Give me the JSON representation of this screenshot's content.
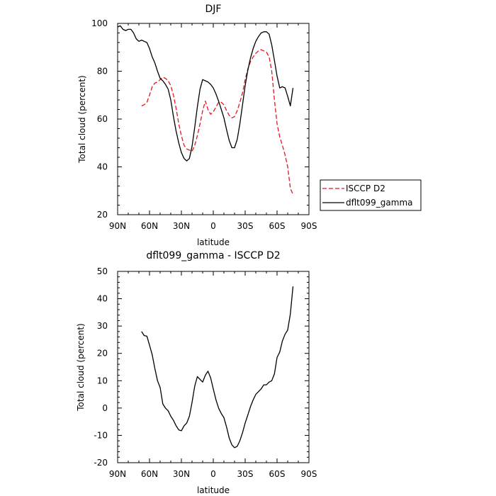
{
  "chart_data": [
    {
      "type": "line",
      "title": "DJF",
      "xlabel": "latitude",
      "ylabel": "Total cloud (percent)",
      "xlim": [
        -90,
        90
      ],
      "ylim": [
        20,
        100
      ],
      "x_ticks": [
        {
          "value": -90,
          "label": "90N"
        },
        {
          "value": -60,
          "label": "60N"
        },
        {
          "value": -30,
          "label": "30N"
        },
        {
          "value": 0,
          "label": "0"
        },
        {
          "value": 30,
          "label": "30S"
        },
        {
          "value": 60,
          "label": "60S"
        },
        {
          "value": 90,
          "label": "90S"
        }
      ],
      "y_ticks": [
        {
          "value": 20,
          "label": "20"
        },
        {
          "value": 40,
          "label": "40"
        },
        {
          "value": 60,
          "label": "60"
        },
        {
          "value": 80,
          "label": "80"
        },
        {
          "value": 100,
          "label": "100"
        }
      ],
      "legend": [
        {
          "label": "ISCCP D2",
          "color": "#e8141e",
          "dash": "6,3"
        },
        {
          "label": "dflt099_gamma",
          "color": "#000000",
          "dash": ""
        }
      ],
      "legend_position": "right",
      "series": [
        {
          "name": "ISCCP D2",
          "color": "#e8141e",
          "dash": "6,3",
          "points": [
            [
              -67.5,
              65.5
            ],
            [
              -65,
              66
            ],
            [
              -62.5,
              67
            ],
            [
              -60,
              70
            ],
            [
              -57.5,
              73.5
            ],
            [
              -55,
              75
            ],
            [
              -52.5,
              75.5
            ],
            [
              -50,
              76.5
            ],
            [
              -47.5,
              77.5
            ],
            [
              -45,
              77
            ],
            [
              -42.5,
              76
            ],
            [
              -40,
              74
            ],
            [
              -37.5,
              70
            ],
            [
              -35,
              64.5
            ],
            [
              -32.5,
              58
            ],
            [
              -30,
              53
            ],
            [
              -27.5,
              49
            ],
            [
              -25,
              47.5
            ],
            [
              -22.5,
              47
            ],
            [
              -20,
              46.5
            ],
            [
              -17.5,
              49
            ],
            [
              -15,
              53
            ],
            [
              -12.5,
              58
            ],
            [
              -10,
              63.5
            ],
            [
              -7.5,
              67.5
            ],
            [
              -5,
              64
            ],
            [
              -2.5,
              62
            ],
            [
              0,
              63
            ],
            [
              2.5,
              65
            ],
            [
              5,
              67
            ],
            [
              7.5,
              67
            ],
            [
              10,
              66
            ],
            [
              12.5,
              63.5
            ],
            [
              15,
              61.5
            ],
            [
              17.5,
              60.5
            ],
            [
              20,
              61
            ],
            [
              22.5,
              63.5
            ],
            [
              25,
              67
            ],
            [
              27.5,
              71
            ],
            [
              30,
              76.5
            ],
            [
              32.5,
              81
            ],
            [
              35,
              84
            ],
            [
              37.5,
              86
            ],
            [
              40,
              87.5
            ],
            [
              42.5,
              88.5
            ],
            [
              45,
              89
            ],
            [
              47.5,
              88.5
            ],
            [
              50,
              88
            ],
            [
              52.5,
              86
            ],
            [
              55,
              80
            ],
            [
              57.5,
              68
            ],
            [
              60,
              58
            ],
            [
              62.5,
              52.5
            ],
            [
              65,
              49
            ],
            [
              67.5,
              45
            ],
            [
              70,
              40
            ],
            [
              72.5,
              31
            ],
            [
              75,
              28.5
            ]
          ]
        },
        {
          "name": "dflt099_gamma",
          "color": "#000000",
          "dash": "",
          "points": [
            [
              -90,
              98.5
            ],
            [
              -87.5,
              99
            ],
            [
              -85,
              97.5
            ],
            [
              -82.5,
              97
            ],
            [
              -80,
              97.5
            ],
            [
              -77.5,
              97.5
            ],
            [
              -75,
              96
            ],
            [
              -72.5,
              93.5
            ],
            [
              -70,
              92.5
            ],
            [
              -67.5,
              93
            ],
            [
              -65,
              92.5
            ],
            [
              -62.5,
              92
            ],
            [
              -60,
              89.5
            ],
            [
              -57.5,
              86
            ],
            [
              -55,
              83.5
            ],
            [
              -52.5,
              80
            ],
            [
              -50,
              77
            ],
            [
              -47.5,
              76
            ],
            [
              -45,
              74.5
            ],
            [
              -42.5,
              72.5
            ],
            [
              -40,
              68
            ],
            [
              -37.5,
              61
            ],
            [
              -35,
              55
            ],
            [
              -32.5,
              50
            ],
            [
              -30,
              46
            ],
            [
              -27.5,
              43.5
            ],
            [
              -25,
              42.5
            ],
            [
              -22.5,
              43.5
            ],
            [
              -20,
              48.5
            ],
            [
              -17.5,
              56.5
            ],
            [
              -15,
              65
            ],
            [
              -12.5,
              72.5
            ],
            [
              -10,
              76.5
            ],
            [
              -7.5,
              76
            ],
            [
              -5,
              75.5
            ],
            [
              -2.5,
              74.5
            ],
            [
              0,
              73
            ],
            [
              2.5,
              70.5
            ],
            [
              5,
              67.5
            ],
            [
              7.5,
              64
            ],
            [
              10,
              60.5
            ],
            [
              12.5,
              55.5
            ],
            [
              15,
              51
            ],
            [
              17.5,
              48
            ],
            [
              20,
              48
            ],
            [
              22.5,
              51.5
            ],
            [
              25,
              58
            ],
            [
              27.5,
              66
            ],
            [
              30,
              74
            ],
            [
              32.5,
              80.5
            ],
            [
              35,
              85.5
            ],
            [
              37.5,
              89.5
            ],
            [
              40,
              92.5
            ],
            [
              42.5,
              94.5
            ],
            [
              45,
              96
            ],
            [
              47.5,
              96.5
            ],
            [
              50,
              96.5
            ],
            [
              52.5,
              95.5
            ],
            [
              55,
              91
            ],
            [
              57.5,
              84.5
            ],
            [
              60,
              78
            ],
            [
              62.5,
              73
            ],
            [
              65,
              73.5
            ],
            [
              67.5,
              73
            ],
            [
              70,
              69.5
            ],
            [
              72.5,
              65.5
            ],
            [
              75,
              73
            ]
          ]
        }
      ]
    },
    {
      "type": "line",
      "title": "dflt099_gamma - ISCCP D2",
      "xlabel": "latitude",
      "ylabel": "Total cloud (percent)",
      "xlim": [
        -90,
        90
      ],
      "ylim": [
        -20,
        50
      ],
      "x_ticks": [
        {
          "value": -90,
          "label": "90N"
        },
        {
          "value": -60,
          "label": "60N"
        },
        {
          "value": -30,
          "label": "30N"
        },
        {
          "value": 0,
          "label": "0"
        },
        {
          "value": 30,
          "label": "30S"
        },
        {
          "value": 60,
          "label": "60S"
        },
        {
          "value": 90,
          "label": "90S"
        }
      ],
      "y_ticks": [
        {
          "value": -20,
          "label": "-20"
        },
        {
          "value": -10,
          "label": "-10"
        },
        {
          "value": 0,
          "label": "0"
        },
        {
          "value": 10,
          "label": "10"
        },
        {
          "value": 20,
          "label": "20"
        },
        {
          "value": 30,
          "label": "30"
        },
        {
          "value": 40,
          "label": "40"
        },
        {
          "value": 50,
          "label": "50"
        }
      ],
      "series": [
        {
          "color": "#000000",
          "dash": "",
          "points": [
            [
              -67.5,
              28
            ],
            [
              -65,
              26.5
            ],
            [
              -62.5,
              26.3
            ],
            [
              -60,
              23
            ],
            [
              -57.5,
              19.5
            ],
            [
              -55,
              14.5
            ],
            [
              -52.5,
              10
            ],
            [
              -50,
              7.5
            ],
            [
              -47.5,
              1.5
            ],
            [
              -45,
              0
            ],
            [
              -42.5,
              -1
            ],
            [
              -40,
              -3
            ],
            [
              -37.5,
              -4.5
            ],
            [
              -35,
              -6.5
            ],
            [
              -32.5,
              -8
            ],
            [
              -30,
              -8.3
            ],
            [
              -27.5,
              -6.5
            ],
            [
              -25,
              -5.5
            ],
            [
              -22.5,
              -3
            ],
            [
              -20,
              2
            ],
            [
              -17.5,
              8
            ],
            [
              -15,
              11.5
            ],
            [
              -12.5,
              10.5
            ],
            [
              -10,
              9.5
            ],
            [
              -7.5,
              12
            ],
            [
              -5,
              13.5
            ],
            [
              -2.5,
              11
            ],
            [
              0,
              7
            ],
            [
              2.5,
              3
            ],
            [
              5,
              0
            ],
            [
              7.5,
              -2
            ],
            [
              10,
              -3.5
            ],
            [
              12.5,
              -7
            ],
            [
              15,
              -11
            ],
            [
              17.5,
              -13.5
            ],
            [
              20,
              -14.5
            ],
            [
              22.5,
              -14
            ],
            [
              25,
              -12
            ],
            [
              27.5,
              -9
            ],
            [
              30,
              -5.5
            ],
            [
              32.5,
              -2.5
            ],
            [
              35,
              0.5
            ],
            [
              37.5,
              3
            ],
            [
              40,
              5
            ],
            [
              42.5,
              6
            ],
            [
              45,
              7
            ],
            [
              47.5,
              8.5
            ],
            [
              50,
              8.5
            ],
            [
              52.5,
              9.5
            ],
            [
              55,
              10
            ],
            [
              57.5,
              12.5
            ],
            [
              60,
              18.5
            ],
            [
              62.5,
              20.5
            ],
            [
              65,
              24.5
            ],
            [
              67.5,
              27
            ],
            [
              70,
              28.5
            ],
            [
              72.5,
              34.5
            ],
            [
              75,
              44.5
            ]
          ]
        }
      ]
    }
  ]
}
